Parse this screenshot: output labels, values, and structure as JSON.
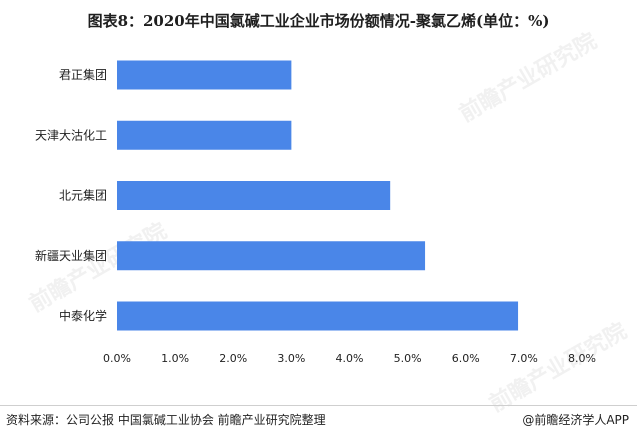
{
  "title": "图表8：2020年中国氯碱工业企业市场份额情况-聚氯乙烯(单位：%)",
  "chart_data": {
    "type": "bar",
    "orientation": "horizontal",
    "title": "图表8：2020年中国氯碱工业企业市场份额情况-聚氯乙烯(单位：%)",
    "categories": [
      "中泰化学",
      "新疆天业集团",
      "北元集团",
      "天津大沽化工",
      "君正集团"
    ],
    "values": [
      6.9,
      5.3,
      4.7,
      3.0,
      3.0
    ],
    "xlim": [
      0,
      8
    ],
    "xticks": [
      "0.0%",
      "1.0%",
      "2.0%",
      "3.0%",
      "4.0%",
      "5.0%",
      "6.0%",
      "7.0%",
      "8.0%"
    ],
    "xlabel": "",
    "ylabel": "",
    "bar_color": "#4a86e8",
    "grid": false,
    "legend": "none"
  },
  "footer": {
    "source": "资料来源：公司公报 中国氯碱工业协会 前瞻产业研究院整理",
    "credit": "@前瞻经济学人APP"
  },
  "watermark": "前瞻产业研究院"
}
